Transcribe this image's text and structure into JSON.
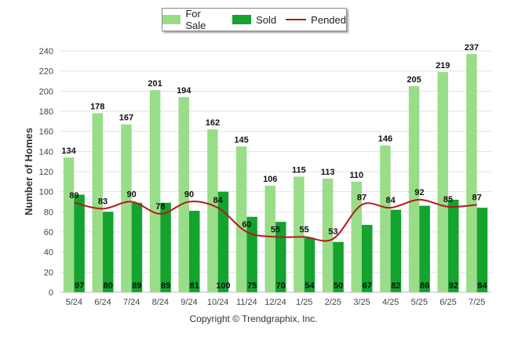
{
  "chart_data": {
    "type": "bar",
    "categories": [
      "5/24",
      "6/24",
      "7/24",
      "8/24",
      "9/24",
      "10/24",
      "11/24",
      "12/24",
      "1/25",
      "2/25",
      "3/25",
      "4/25",
      "5/25",
      "6/25",
      "7/25"
    ],
    "series": [
      {
        "name": "For Sale",
        "type": "bar",
        "color": "#99dd88",
        "values": [
          134,
          178,
          167,
          201,
          194,
          162,
          145,
          106,
          115,
          113,
          110,
          146,
          205,
          219,
          237
        ]
      },
      {
        "name": "Sold",
        "type": "bar",
        "color": "#13a32e",
        "values": [
          97,
          80,
          89,
          89,
          81,
          100,
          75,
          70,
          54,
          50,
          67,
          82,
          86,
          92,
          84
        ]
      },
      {
        "name": "Pended",
        "type": "line",
        "color": "#b3181f",
        "values": [
          89,
          83,
          90,
          78,
          90,
          84,
          60,
          55,
          55,
          53,
          87,
          84,
          92,
          85,
          87
        ]
      }
    ],
    "title": "",
    "xlabel": "",
    "ylabel": "Number of Homes",
    "ylim": [
      0,
      240
    ],
    "yticks": [
      0,
      20,
      40,
      60,
      80,
      100,
      120,
      140,
      160,
      180,
      200,
      220,
      240
    ],
    "grid": true,
    "legend": "top-center"
  },
  "legend": {
    "for_sale": "For Sale",
    "sold": "Sold",
    "pended": "Pended"
  },
  "footer": {
    "copyright": "Copyright © Trendgraphix, Inc."
  }
}
